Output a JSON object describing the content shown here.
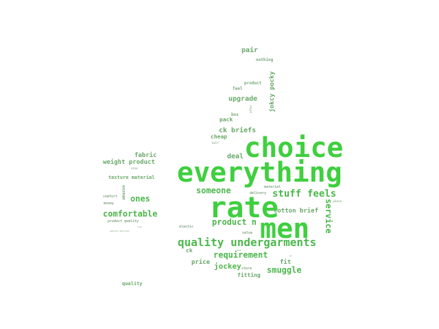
{
  "colors": {
    "background": "#ffffff",
    "big": "#3fcf3f",
    "medium": "#4db84d",
    "small": "#6aa86a",
    "tiny": "#9ab89a"
  },
  "words": [
    {
      "text": "choice"
    },
    {
      "text": "everything"
    },
    {
      "text": "rate"
    },
    {
      "text": "men"
    },
    {
      "text": "quality undergarments"
    },
    {
      "text": "stuff"
    },
    {
      "text": "feels"
    },
    {
      "text": "someone"
    },
    {
      "text": "comfortable"
    },
    {
      "text": "ones"
    },
    {
      "text": "product n"
    },
    {
      "text": "requirement"
    },
    {
      "text": "smuggle"
    },
    {
      "text": "jockey"
    },
    {
      "text": "service"
    },
    {
      "text": "ck briefs"
    },
    {
      "text": "upgrade"
    },
    {
      "text": "pair"
    },
    {
      "text": "deal"
    },
    {
      "text": "weight product"
    },
    {
      "text": "fabric"
    },
    {
      "text": "cotton brief"
    },
    {
      "text": "price"
    },
    {
      "text": "fit"
    },
    {
      "text": "fitting"
    },
    {
      "text": "jokcy pocky"
    },
    {
      "text": "cheap"
    },
    {
      "text": "pack"
    },
    {
      "text": "ck"
    },
    {
      "text": "texture material"
    },
    {
      "text": "quality"
    },
    {
      "text": "nothing"
    },
    {
      "text": "product"
    },
    {
      "text": "feel"
    },
    {
      "text": "box"
    },
    {
      "text": "amazon"
    },
    {
      "text": "comfort"
    },
    {
      "text": "money"
    },
    {
      "text": "product quality"
    },
    {
      "text": "material"
    },
    {
      "text": "delivery"
    },
    {
      "text": "elastic"
    },
    {
      "text": "value"
    },
    {
      "text": "store"
    },
    {
      "text": "half"
    },
    {
      "text": "offer"
    },
    {
      "text": "size"
    },
    {
      "text": "piece"
    },
    {
      "text": "quality material"
    },
    {
      "text": "love"
    },
    {
      "text": "go"
    },
    {
      "text": "item"
    }
  ]
}
